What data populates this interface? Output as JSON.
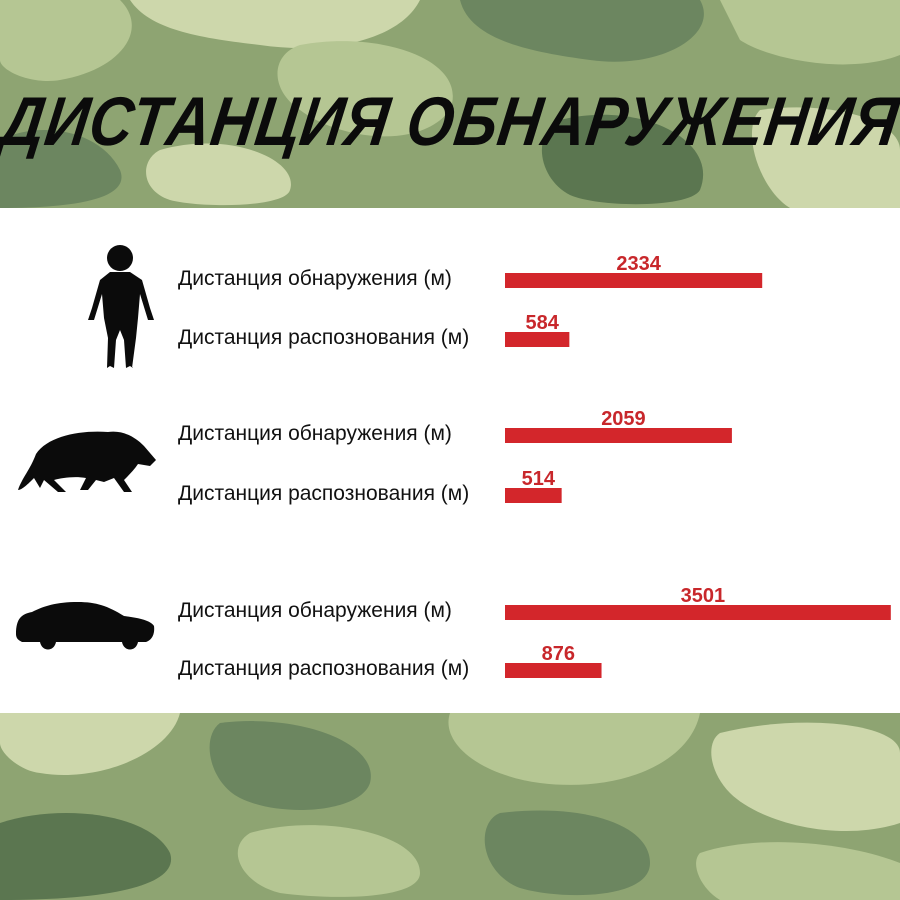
{
  "title": "ДИСТАНЦИЯ ОБНАРУЖЕНИЯ",
  "colors": {
    "bar": "#d3262b",
    "value_text": "#c8272b",
    "label_text": "#111111",
    "panel": "#ffffff",
    "camo_base": "#8ea472",
    "camo_light": "#b5c693",
    "camo_pale": "#cdd7ab",
    "camo_dark": "#6c8660",
    "camo_deep": "#5b7650"
  },
  "groups": [
    {
      "icon": "human-silhouette-icon"
    },
    {
      "icon": "boar-silhouette-icon"
    },
    {
      "icon": "car-silhouette-icon"
    }
  ],
  "chart_data": {
    "type": "bar",
    "orientation": "horizontal",
    "title": "ДИСТАНЦИЯ ОБНАРУЖЕНИЯ",
    "categories": [
      "Дистанция обнаружения (м)",
      "Дистанция распознования (м)",
      "Дистанция обнаружения (м)",
      "Дистанция распознования (м)",
      "Дистанция обнаружения (м)",
      "Дистанция распознования (м)"
    ],
    "values": [
      2334,
      584,
      2059,
      514,
      3501,
      876
    ],
    "groups": [
      "human-silhouette-icon",
      "boar-silhouette-icon",
      "car-silhouette-icon"
    ],
    "grid": false,
    "legend": "none"
  }
}
